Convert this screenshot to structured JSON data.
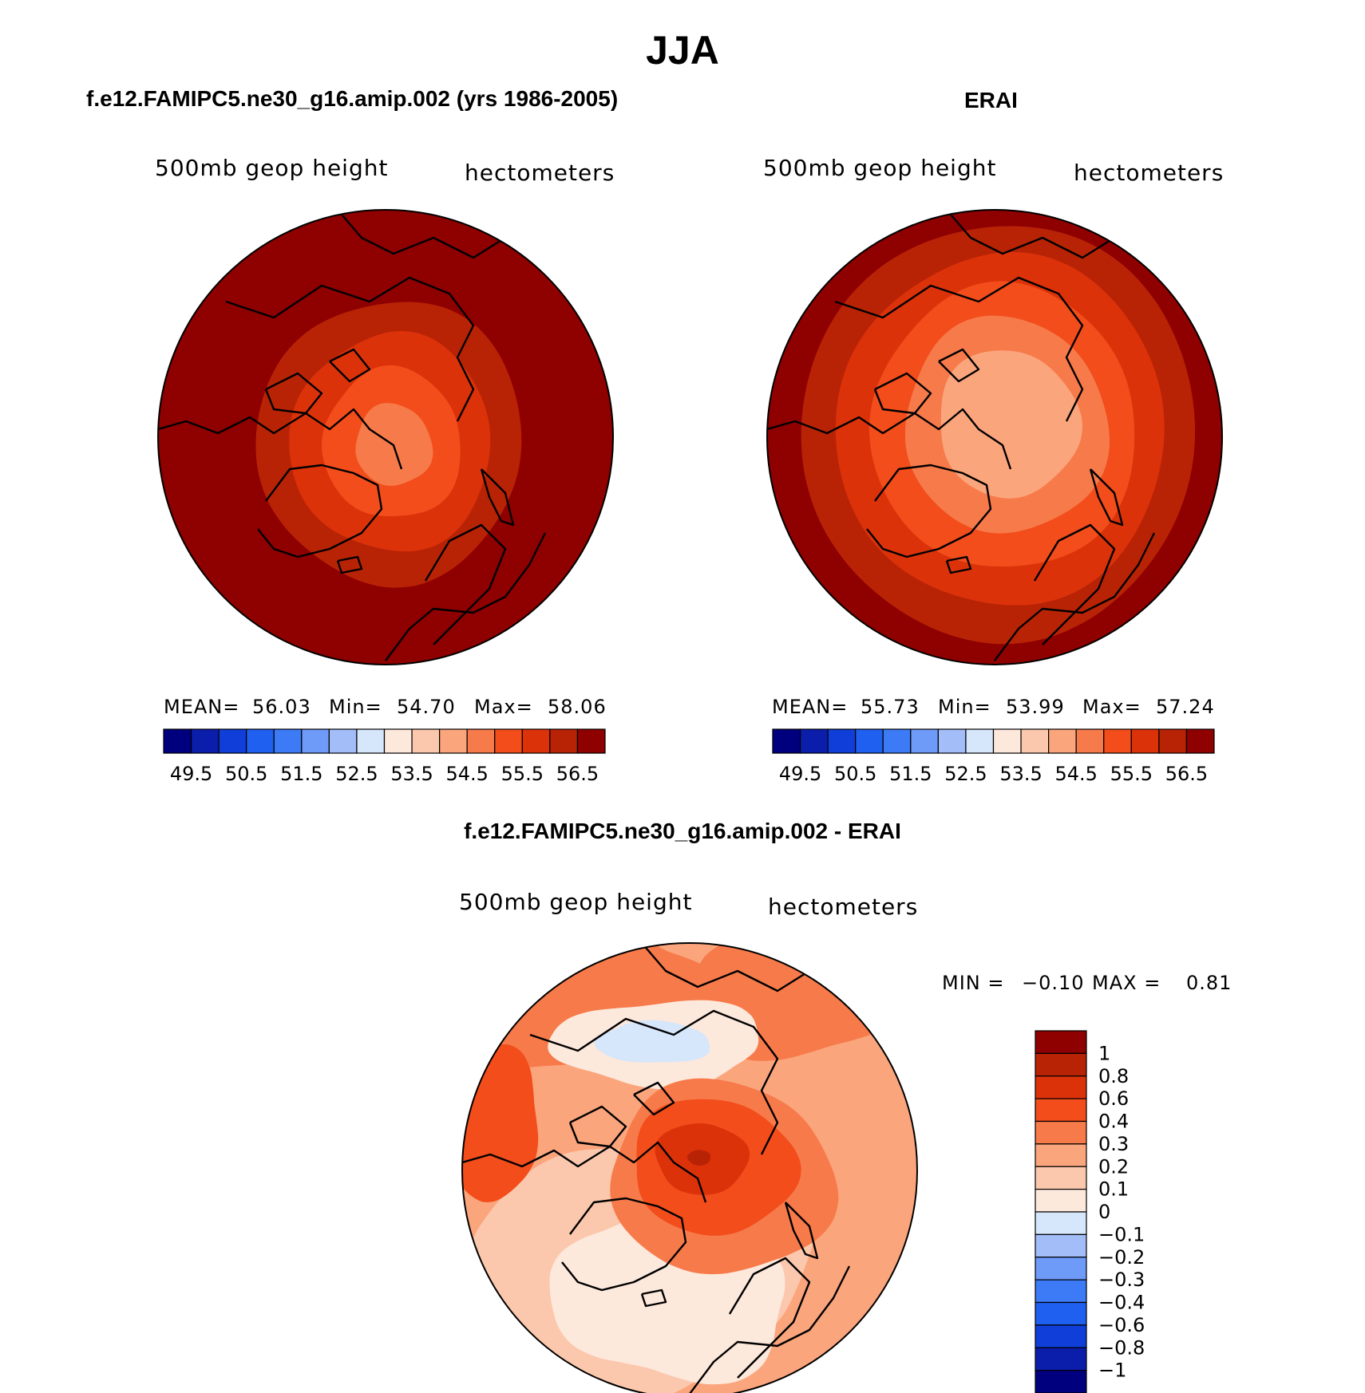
{
  "figure": {
    "season": "JJA"
  },
  "colors": {
    "diverging_16": [
      "#00007f",
      "#0a1eab",
      "#0f3fd8",
      "#2060f0",
      "#3c7bf5",
      "#6e9af8",
      "#a3bdf9",
      "#d6e6fb",
      "#fde8dc",
      "#fcc8ad",
      "#fba57d",
      "#f77a4a",
      "#f24d1b",
      "#dc320a",
      "#b82306",
      "#8f0000"
    ],
    "diff_14": [
      "#00007f",
      "#0a1eab",
      "#0f3fd8",
      "#2060f0",
      "#3c7bf5",
      "#6e9af8",
      "#a3bdf9",
      "#d6e6fb",
      "#fde8dc",
      "#fcc8ad",
      "#fba57d",
      "#f77a4a",
      "#f24d1b",
      "#dc320a",
      "#b82306",
      "#8f0000"
    ],
    "coastline": "#000000"
  },
  "icons": [
    "coastline-outline",
    "polar-map-disc"
  ],
  "chart_data": [
    {
      "type": "heatmap",
      "projection": "north-polar-stereographic",
      "title": "f.e12.FAMIPC5.ne30_g16.amip.002 (yrs 1986-2005)",
      "left_label": "500mb  geop  height",
      "right_label": "hectometers",
      "stats": {
        "mean_label": "MEAN=",
        "mean": "56.03",
        "min_label": "Min=",
        "min": "54.70",
        "max_label": "Max=",
        "max": "58.06"
      },
      "colorbar_ticks": [
        "49.5",
        "50.5",
        "51.5",
        "52.5",
        "53.5",
        "54.5",
        "55.5",
        "56.5"
      ],
      "contour_levels": [
        49.5,
        50.0,
        50.5,
        51.0,
        51.5,
        52.0,
        52.5,
        53.0,
        53.5,
        54.0,
        54.5,
        55.0,
        55.5,
        56.0,
        56.5
      ],
      "pole_value": 54.9,
      "edge_value": 58.0
    },
    {
      "type": "heatmap",
      "projection": "north-polar-stereographic",
      "title": "ERAI",
      "left_label": "500mb  geop  height",
      "right_label": "hectometers",
      "stats": {
        "mean_label": "MEAN=",
        "mean": "55.73",
        "min_label": "Min=",
        "min": "53.99",
        "max_label": "Max=",
        "max": "57.24"
      },
      "colorbar_ticks": [
        "49.5",
        "50.5",
        "51.5",
        "52.5",
        "53.5",
        "54.5",
        "55.5",
        "56.5"
      ],
      "contour_levels": [
        49.5,
        50.0,
        50.5,
        51.0,
        51.5,
        52.0,
        52.5,
        53.0,
        53.5,
        54.0,
        54.5,
        55.0,
        55.5,
        56.0,
        56.5
      ],
      "pole_value": 54.0,
      "edge_value": 57.2
    },
    {
      "type": "heatmap",
      "projection": "north-polar-stereographic",
      "title": "f.e12.FAMIPC5.ne30_g16.amip.002 - ERAI",
      "left_label": "500mb  geop  height",
      "right_label": "hectometers",
      "stats": {
        "min_label": "MIN =",
        "min": "−0.10",
        "max_label": "MAX =",
        "max": "0.81"
      },
      "colorbar_ticks": [
        "1",
        "0.8",
        "0.6",
        "0.4",
        "0.3",
        "0.2",
        "0.1",
        "0",
        "−0.1",
        "−0.2",
        "−0.3",
        "−0.4",
        "−0.6",
        "−0.8",
        "−1"
      ],
      "contour_levels": [
        -1,
        -0.8,
        -0.6,
        -0.4,
        -0.3,
        -0.2,
        -0.1,
        0,
        0.1,
        0.2,
        0.3,
        0.4,
        0.6,
        0.8,
        1
      ]
    }
  ]
}
